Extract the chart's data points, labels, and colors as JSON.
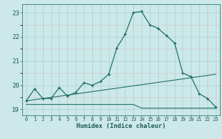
{
  "xlabel": "Humidex (Indice chaleur)",
  "bg_color": "#cce8e8",
  "grid_color_major": "#aad4d4",
  "grid_color_minor": "#c0e0e0",
  "line_color": "#1a6e60",
  "xlim": [
    -0.5,
    23.5
  ],
  "ylim": [
    18.75,
    23.35
  ],
  "yticks": [
    19,
    20,
    21,
    22,
    23
  ],
  "xticks": [
    0,
    1,
    2,
    3,
    4,
    5,
    6,
    7,
    8,
    9,
    10,
    11,
    12,
    13,
    14,
    15,
    16,
    17,
    18,
    19,
    20,
    21,
    22,
    23
  ],
  "series0_x": [
    0,
    1,
    2,
    3,
    4,
    5,
    6,
    7,
    8,
    9,
    10,
    11,
    12,
    13,
    14,
    15,
    16,
    17,
    18,
    19,
    20,
    21,
    22,
    23
  ],
  "series0_y": [
    19.35,
    19.85,
    19.45,
    19.45,
    19.9,
    19.55,
    19.7,
    20.1,
    20.0,
    20.15,
    20.45,
    21.55,
    22.1,
    23.0,
    23.05,
    22.5,
    22.35,
    22.05,
    21.75,
    20.5,
    20.35,
    19.65,
    19.45,
    19.1
  ],
  "series1_x": [
    0,
    1,
    2,
    3,
    4,
    5,
    6,
    7,
    8,
    9,
    10,
    11,
    12,
    13,
    14,
    15,
    16,
    17,
    18,
    19,
    20,
    21,
    22,
    23
  ],
  "series1_y": [
    19.2,
    19.2,
    19.2,
    19.2,
    19.2,
    19.2,
    19.2,
    19.2,
    19.2,
    19.2,
    19.2,
    19.2,
    19.2,
    19.2,
    19.05,
    19.05,
    19.05,
    19.05,
    19.05,
    19.05,
    19.05,
    19.05,
    19.05,
    19.05
  ],
  "series2_x": [
    0,
    23
  ],
  "series2_y": [
    19.35,
    20.45
  ]
}
